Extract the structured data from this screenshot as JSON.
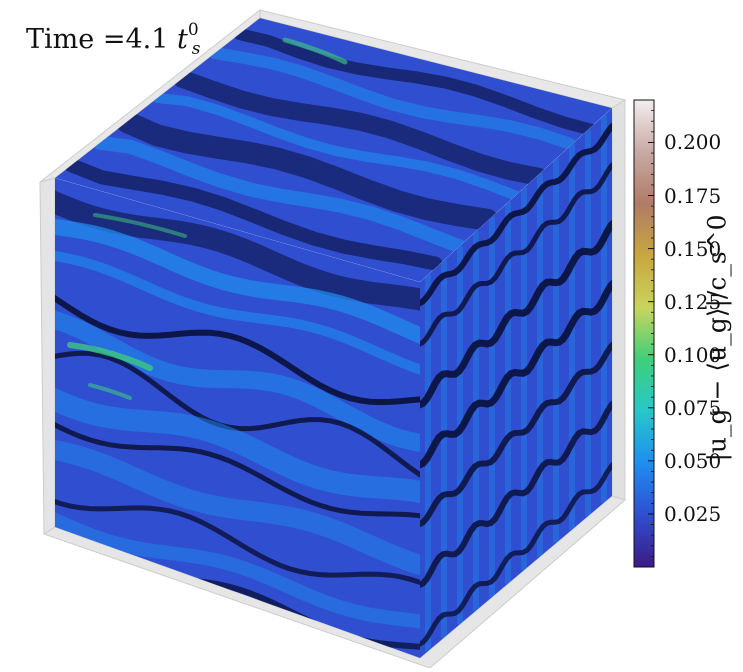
{
  "title": {
    "prefix": "Time",
    "equals": "=",
    "value": "4.1",
    "unit_symbol": "t",
    "unit_sup": "0",
    "unit_sub": "s"
  },
  "colorbar": {
    "label": "|u_g − ⟨u_g⟩|/c_s^0",
    "min": 0.0,
    "max": 0.22,
    "ticks": [
      0.025,
      0.05,
      0.075,
      0.1,
      0.125,
      0.15,
      0.175,
      0.2
    ],
    "tick_labels": [
      "0.025",
      "0.050",
      "0.075",
      "0.100",
      "0.125",
      "0.150",
      "0.175",
      "0.200"
    ],
    "colormap": [
      "#3c1a87",
      "#2f4fd0",
      "#1f8ef0",
      "#27c7c9",
      "#3fcf7a",
      "#c9d45c",
      "#c8a73e",
      "#b07b67",
      "#c8a9a4",
      "#f3eeee"
    ]
  },
  "volume": {
    "background_color": "#2f4fd0",
    "bright_streak_color": "#1f8ef0",
    "highlight_color": "#3fcf7a",
    "dark_structure_color": "#0a0f3a"
  }
}
